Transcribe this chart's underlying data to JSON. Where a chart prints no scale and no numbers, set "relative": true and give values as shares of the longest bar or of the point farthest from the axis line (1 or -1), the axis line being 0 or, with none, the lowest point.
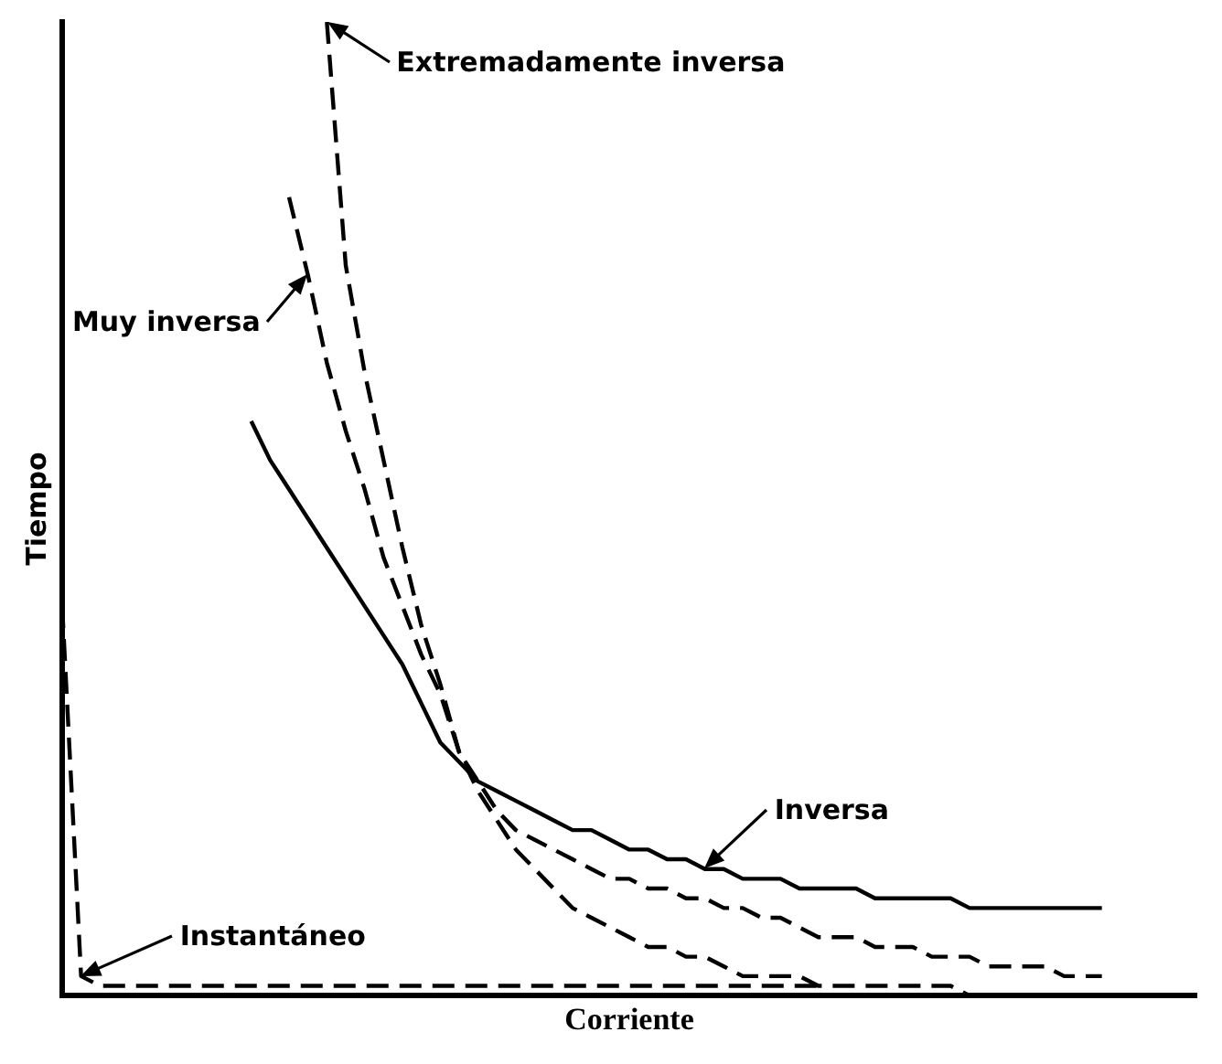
{
  "chart_data": {
    "type": "line",
    "relative": true,
    "xlabel": "Corriente",
    "ylabel": "Tiempo",
    "legend": false,
    "grid": false,
    "marker": "none",
    "categories": [
      null,
      null,
      null,
      null,
      null,
      null,
      null,
      null,
      null,
      null,
      null,
      null,
      null,
      null,
      null,
      null,
      null,
      null,
      null,
      null,
      null,
      null,
      null,
      null,
      null,
      null,
      null,
      null,
      null,
      null,
      null,
      null,
      null,
      null,
      null,
      null,
      null,
      null,
      null,
      null,
      null,
      null,
      null,
      null,
      null,
      null,
      null,
      null,
      null,
      null,
      null,
      null,
      null,
      null,
      null,
      null,
      null,
      null,
      null,
      null,
      null
    ],
    "series": [
      {
        "name": "Extremadamente inversa",
        "color": "#000000",
        "line_style": "dashed",
        "values": [
          null,
          null,
          null,
          null,
          null,
          null,
          null,
          null,
          null,
          null,
          null,
          null,
          null,
          null,
          1.0,
          0.75,
          0.64,
          0.55,
          0.46,
          0.38,
          0.32,
          0.25,
          0.21,
          0.18,
          0.15,
          0.13,
          0.11,
          0.09,
          0.08,
          0.07,
          0.06,
          0.05,
          0.05,
          0.04,
          0.04,
          0.03,
          0.02,
          0.02,
          0.02,
          0.02,
          0.01,
          0.01,
          0.01,
          0.01,
          0.01,
          0.01,
          0.01,
          0.01,
          0,
          0,
          0,
          0,
          0,
          0,
          0,
          0,
          0,
          0,
          0,
          0,
          0
        ]
      },
      {
        "name": "Muy inversa",
        "color": "#000000",
        "line_style": "dashed",
        "values": [
          null,
          null,
          null,
          null,
          null,
          null,
          null,
          null,
          null,
          null,
          null,
          null,
          0.82,
          0.74,
          0.65,
          0.58,
          0.52,
          0.45,
          0.4,
          0.35,
          0.31,
          0.25,
          0.22,
          0.19,
          0.17,
          0.16,
          0.15,
          0.14,
          0.13,
          0.12,
          0.12,
          0.11,
          0.11,
          0.1,
          0.1,
          0.09,
          0.09,
          0.08,
          0.08,
          0.07,
          0.06,
          0.06,
          0.06,
          0.05,
          0.05,
          0.05,
          0.04,
          0.04,
          0.04,
          0.03,
          0.03,
          0.03,
          0.03,
          0.02,
          0.02,
          0.02,
          null,
          null,
          null,
          null,
          null
        ]
      },
      {
        "name": "Inversa",
        "color": "#000000",
        "line_style": "solid",
        "values": [
          null,
          null,
          null,
          null,
          null,
          null,
          null,
          null,
          null,
          null,
          0.59,
          0.55,
          0.52,
          0.49,
          0.46,
          0.43,
          0.4,
          0.37,
          0.34,
          0.3,
          0.26,
          0.24,
          0.22,
          0.21,
          0.2,
          0.19,
          0.18,
          0.17,
          0.17,
          0.16,
          0.15,
          0.15,
          0.14,
          0.14,
          0.13,
          0.13,
          0.12,
          0.12,
          0.12,
          0.11,
          0.11,
          0.11,
          0.11,
          0.1,
          0.1,
          0.1,
          0.1,
          0.1,
          0.09,
          0.09,
          0.09,
          0.09,
          0.09,
          0.09,
          0.09,
          0.09,
          null,
          null,
          null,
          null,
          null
        ]
      },
      {
        "name": "Instantáneo",
        "color": "#000000",
        "line_style": "dashed",
        "values": [
          0.4,
          0.02,
          0.01,
          0.01,
          0.01,
          0.01,
          0.01,
          0.01,
          0.01,
          0.01,
          0.01,
          0.01,
          0.01,
          0.01,
          0.01,
          0.01,
          0.01,
          0.01,
          0.01,
          0.01,
          0.01,
          0.01,
          0.01,
          0.01,
          0.01,
          0.01,
          0.01,
          0.01,
          0.01,
          0.01,
          0.01,
          0.01,
          0.01,
          0.01,
          0.01,
          0.01,
          0.01,
          0.01,
          0.01,
          0.01,
          0.01,
          null,
          null,
          null,
          null,
          null,
          null,
          null,
          null,
          null,
          null,
          null,
          null,
          null,
          null,
          null,
          null,
          null,
          null,
          null,
          null
        ]
      }
    ]
  }
}
